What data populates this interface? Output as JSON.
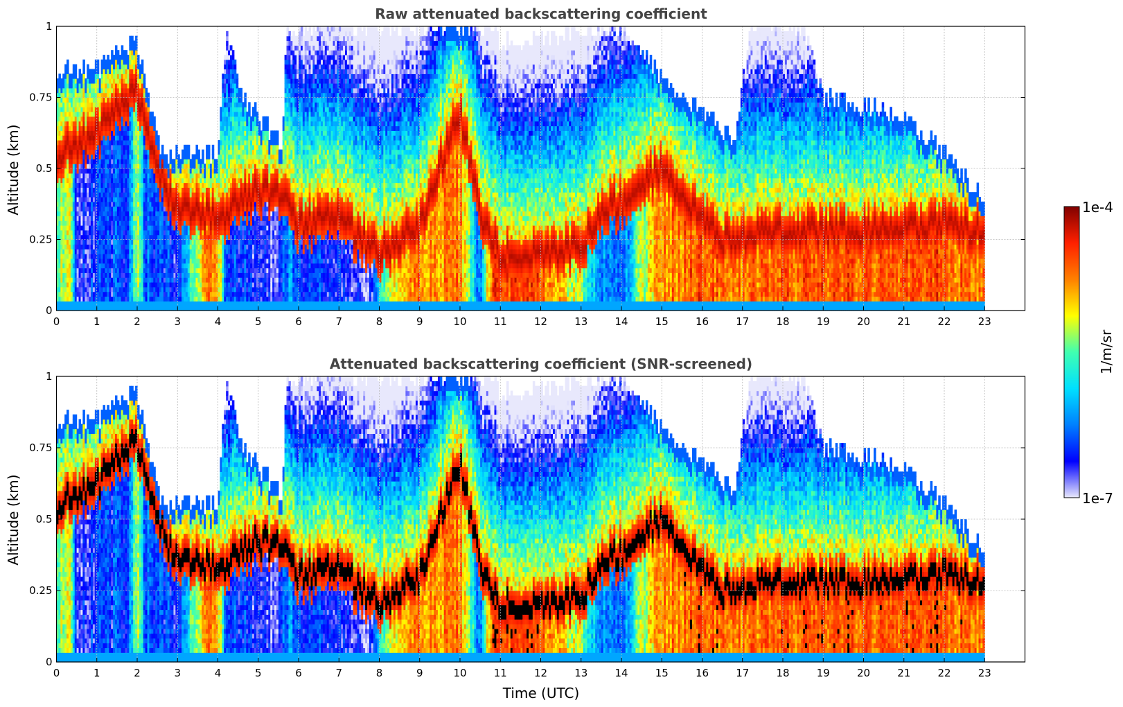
{
  "figure": {
    "colorbar": {
      "label": "1/m/sr",
      "max_label": "1e-4",
      "min_label": "1e-7",
      "colormap": [
        "#e8e8fc",
        "#0000ff",
        "#0080ff",
        "#00e0ff",
        "#40ffb0",
        "#ffff00",
        "#ff8000",
        "#ff2000",
        "#800000"
      ],
      "screened_black": "#000000"
    }
  },
  "chart_data": [
    {
      "type": "heatmap",
      "title": "Raw attenuated backscattering coefficient",
      "xlabel": "",
      "ylabel": "Altitude (km)",
      "xlim": [
        0,
        24
      ],
      "ylim": [
        0,
        1
      ],
      "x_ticks": [
        "0",
        "1",
        "2",
        "3",
        "4",
        "5",
        "6",
        "7",
        "8",
        "9",
        "10",
        "11",
        "12",
        "13",
        "14",
        "15",
        "16",
        "17",
        "18",
        "19",
        "20",
        "21",
        "22",
        "23"
      ],
      "y_ticks": [
        "0",
        "0.25",
        "0.5",
        "0.75",
        "1"
      ],
      "grid": true,
      "colorscale": "log",
      "value_range": [
        1e-07,
        0.0001
      ],
      "data_extent_hours": [
        0,
        23
      ]
    },
    {
      "type": "heatmap",
      "title": "Attenuated backscattering coefficient (SNR-screened)",
      "xlabel": "Time (UTC)",
      "ylabel": "Altitude (km)",
      "xlim": [
        0,
        24
      ],
      "ylim": [
        0,
        1
      ],
      "x_ticks": [
        "0",
        "1",
        "2",
        "3",
        "4",
        "5",
        "6",
        "7",
        "8",
        "9",
        "10",
        "11",
        "12",
        "13",
        "14",
        "15",
        "16",
        "17",
        "18",
        "19",
        "20",
        "21",
        "22",
        "23"
      ],
      "y_ticks": [
        "0",
        "0.25",
        "0.5",
        "0.75",
        "1"
      ],
      "grid": true,
      "colorscale": "log",
      "value_range": [
        1e-07,
        0.0001
      ],
      "data_extent_hours": [
        0,
        23
      ]
    }
  ]
}
